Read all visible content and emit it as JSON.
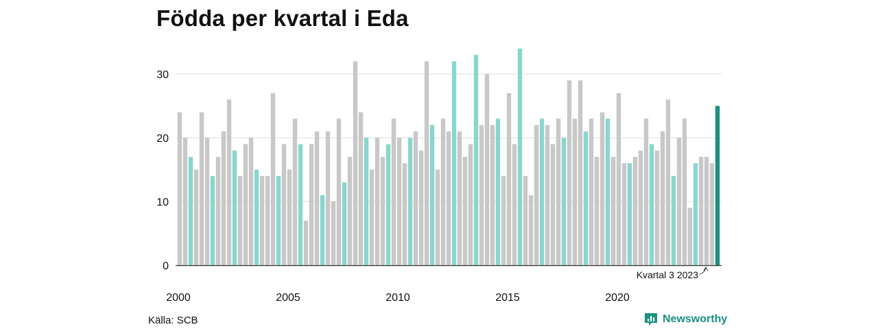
{
  "header": {
    "title": "Födda per kvartal i Eda"
  },
  "footer": {
    "source": "Källa: SCB",
    "brand_name": "Newsworthy",
    "brand_icon": "bar-chart-logo-icon"
  },
  "chart_data": {
    "type": "bar",
    "title": "Födda per kvartal i Eda",
    "xlabel": "",
    "ylabel": "",
    "ylim": [
      0,
      36
    ],
    "yticks": [
      0,
      10,
      20,
      30
    ],
    "xtick_labels": [
      "2000",
      "2005",
      "2010",
      "2015",
      "2020"
    ],
    "grid": true,
    "colors": {
      "default": "#c8c8c8",
      "quarter3": "#8ad6cf",
      "latest": "#1a9080",
      "axis": "#333333",
      "grid": "#dddddd"
    },
    "series": [
      {
        "values": [
          24,
          20,
          17,
          15,
          24,
          20,
          14,
          17,
          21,
          26,
          18,
          14,
          19,
          20,
          15,
          14,
          14,
          27,
          14,
          19,
          15,
          23,
          19,
          7,
          19,
          21,
          11,
          21,
          10,
          23,
          13,
          17,
          32,
          24,
          20,
          15,
          20,
          17,
          19,
          23,
          20,
          16,
          20,
          21,
          18,
          32,
          22,
          15,
          23,
          21,
          32,
          21,
          17,
          19,
          33,
          22,
          30,
          22,
          23,
          14,
          27,
          19,
          34,
          14,
          11,
          22,
          23,
          22,
          19,
          23,
          20,
          29,
          23,
          29,
          21,
          23,
          17,
          24,
          23,
          17,
          27,
          16,
          16,
          17,
          18,
          23,
          19,
          18,
          21,
          26,
          14,
          20,
          23,
          9,
          16,
          17,
          17,
          16,
          25
        ]
      }
    ],
    "first_period": "2000 Kvartal 1",
    "annotation": {
      "text": "Kvartal 3 2023",
      "target_period": "2023 Kvartal 3"
    }
  }
}
